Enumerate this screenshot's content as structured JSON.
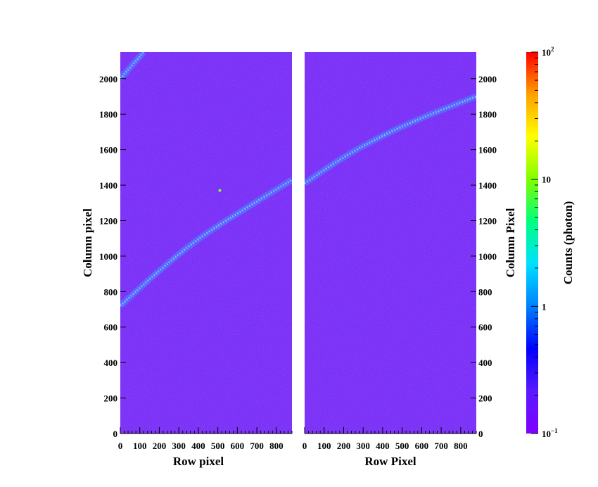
{
  "chart_data": [
    {
      "type": "heatmap",
      "panel": "left",
      "xlabel": "Row pixel",
      "ylabel": "Column pixel",
      "xlim": [
        0,
        880
      ],
      "ylim": [
        0,
        2150
      ],
      "x_ticks": [
        0,
        100,
        200,
        300,
        400,
        500,
        600,
        700,
        800
      ],
      "y_ticks": [
        0,
        200,
        400,
        600,
        800,
        1000,
        1200,
        1400,
        1600,
        1800,
        2000
      ],
      "background_color": "#7b2ff7",
      "trace_color": "#3aa0ff",
      "traces": [
        {
          "x": [
            0,
            200,
            400,
            600,
            880
          ],
          "y": [
            720,
            920,
            1100,
            1240,
            1430
          ]
        },
        {
          "x": [
            0,
            120
          ],
          "y": [
            2000,
            2150
          ]
        }
      ],
      "hot_spots": [
        {
          "x": 510,
          "y": 1370,
          "color": "#7dff2a"
        }
      ]
    },
    {
      "type": "heatmap",
      "panel": "right",
      "xlabel": "Row Pixel",
      "ylabel": "Column Pixel",
      "xlim": [
        0,
        880
      ],
      "ylim": [
        0,
        2150
      ],
      "x_ticks": [
        0,
        100,
        200,
        300,
        400,
        500,
        600,
        700,
        800
      ],
      "y_ticks": [
        0,
        200,
        400,
        600,
        800,
        1000,
        1200,
        1400,
        1600,
        1800,
        2000
      ],
      "background_color": "#7b2ff7",
      "trace_color": "#3aa0ff",
      "traces": [
        {
          "x": [
            0,
            200,
            400,
            600,
            880
          ],
          "y": [
            1410,
            1560,
            1680,
            1780,
            1900
          ]
        }
      ]
    }
  ],
  "colorbar": {
    "label": "Counts (photon)",
    "scale": "log",
    "range": [
      0.1,
      100
    ],
    "ticks": [
      {
        "value": 100,
        "base": "10",
        "exp": "2"
      },
      {
        "value": 10,
        "base": "10",
        "exp": ""
      },
      {
        "value": 1,
        "base": "1",
        "exp": ""
      },
      {
        "value": 0.1,
        "base": "10",
        "exp": "−1"
      }
    ],
    "colors": [
      "#8000ff",
      "#5a1aff",
      "#0000ff",
      "#0080ff",
      "#00e0ff",
      "#00ff80",
      "#80ff00",
      "#ffff00",
      "#ffa000",
      "#ff0000"
    ]
  }
}
